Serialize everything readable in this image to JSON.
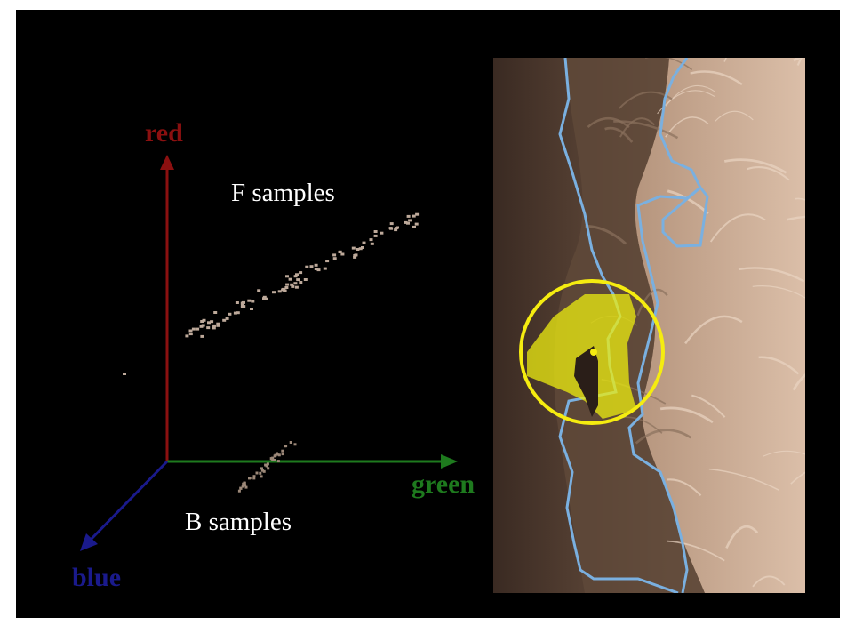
{
  "axes": {
    "red_label": "red",
    "green_label": "green",
    "blue_label": "blue"
  },
  "samples": {
    "f_label": "F samples",
    "b_label": "B samples"
  },
  "colors": {
    "background": "#000000",
    "red_axis": "#8b1010",
    "green_axis": "#1e7a1e",
    "blue_axis": "#1a1a8c",
    "sample_points": "#bda99a",
    "boundary": "#7ab0e0",
    "highlight": "#ecec10",
    "text": "#ffffff"
  }
}
